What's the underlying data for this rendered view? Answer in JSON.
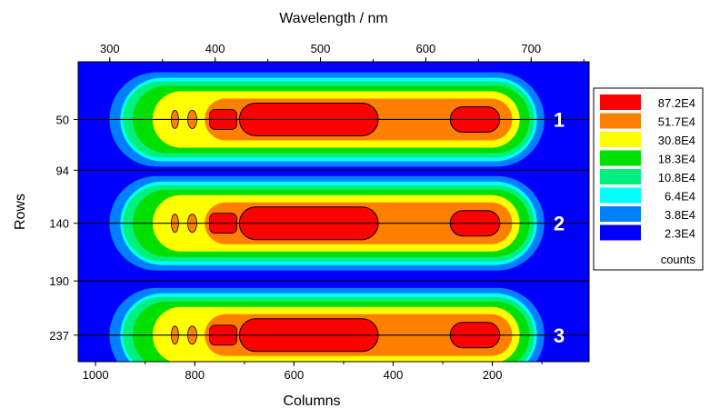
{
  "chart_data": {
    "type": "heatmap",
    "title": "",
    "top_axis": {
      "label": "Wavelength / nm",
      "ticks": [
        "300",
        "400",
        "500",
        "600",
        "700"
      ],
      "range": [
        270,
        755
      ]
    },
    "bottom_axis": {
      "label": "Columns",
      "ticks": [
        "1000",
        "800",
        "600",
        "400",
        "200"
      ],
      "range": [
        1035,
        5
      ],
      "reversed": true
    },
    "left_axis": {
      "label": "Rows",
      "ticks": [
        "50",
        "94",
        "140",
        "190",
        "237"
      ],
      "range": [
        0,
        260
      ],
      "reversed": true
    },
    "divider_rows": [
      50,
      94,
      140,
      190,
      237
    ],
    "fibers": [
      {
        "label": "1",
        "center_row": 50
      },
      {
        "label": "2",
        "center_row": 140
      },
      {
        "label": "3",
        "center_row": 237
      }
    ],
    "legend": {
      "placement": "right",
      "unit": "counts",
      "levels": [
        {
          "label": "87.2E4",
          "color": "#ff0000"
        },
        {
          "label": "51.7E4",
          "color": "#ff8000"
        },
        {
          "label": "30.8E4",
          "color": "#ffff00"
        },
        {
          "label": "18.3E4",
          "color": "#00e000"
        },
        {
          "label": "10.8E4",
          "color": "#00f080"
        },
        {
          "label": "6.4E4",
          "color": "#00ffff"
        },
        {
          "label": "3.8E4",
          "color": "#0080ff"
        },
        {
          "label": "2.3E4",
          "color": "#0000ff"
        }
      ]
    },
    "level_extents_columns": {
      "10.8E4": [
        945,
        115
      ],
      "18.3E4": [
        925,
        125
      ],
      "30.8E4": [
        885,
        145
      ],
      "51.7E4": [
        780,
        160
      ],
      "87.2E4_main": [
        710,
        430
      ],
      "87.2E4_peak": [
        285,
        185
      ]
    }
  }
}
